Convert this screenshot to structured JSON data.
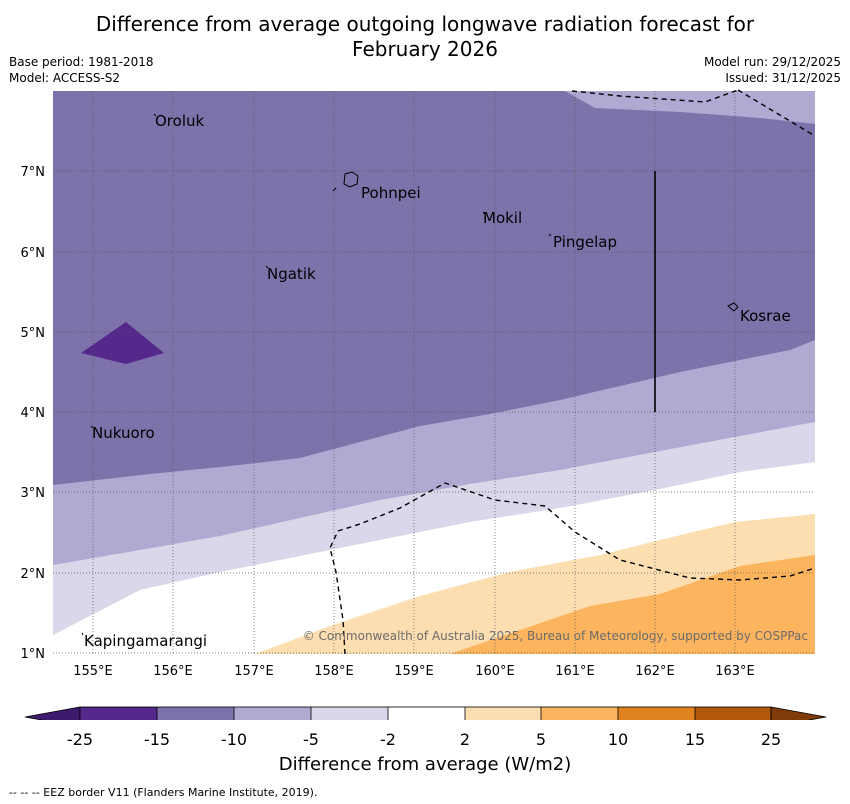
{
  "title_line1": "Difference from average outgoing longwave radiation forecast for",
  "title_line2": "February 2026",
  "base_period": "Base period: 1981-2018",
  "model": "Model: ACCESS-S2",
  "model_run": "Model run: 29/12/2025",
  "issued": "Issued: 31/12/2025",
  "copyright": "© Commonwealth of Australia 2025, Bureau of Meteorology, supported by COSPPac",
  "lon_labels": [
    "155°E",
    "156°E",
    "157°E",
    "158°E",
    "159°E",
    "160°E",
    "161°E",
    "162°E",
    "163°E"
  ],
  "lat_labels": [
    "7°N",
    "6°N",
    "5°N",
    "4°N",
    "3°N",
    "2°N",
    "1°N"
  ],
  "places": {
    "oroluk": "Oroluk",
    "pohnpei": "Pohnpei",
    "mokil": "Mokil",
    "pingelap": "Pingelap",
    "ngatik": "Ngatik",
    "kosrae": "Kosrae",
    "nukuoro": "Nukuoro",
    "kapingamarangi": "Kapingamarangi"
  },
  "colorbar": {
    "ticks": [
      "-25",
      "-15",
      "-10",
      "-5",
      "-2",
      "2",
      "5",
      "10",
      "15",
      "25"
    ],
    "colors": [
      "#3d1a6e",
      "#55288b",
      "#7e72ab",
      "#aeaad1",
      "#d8d8ea",
      "#ffffff",
      "#fddeb1",
      "#fcb45e",
      "#e0821e",
      "#b35709",
      "#7f3b08"
    ],
    "title": "Difference from average (W/m2)"
  },
  "footnote": "--  --  -- EEZ border V11 (Flanders Marine Institute, 2019)."
}
